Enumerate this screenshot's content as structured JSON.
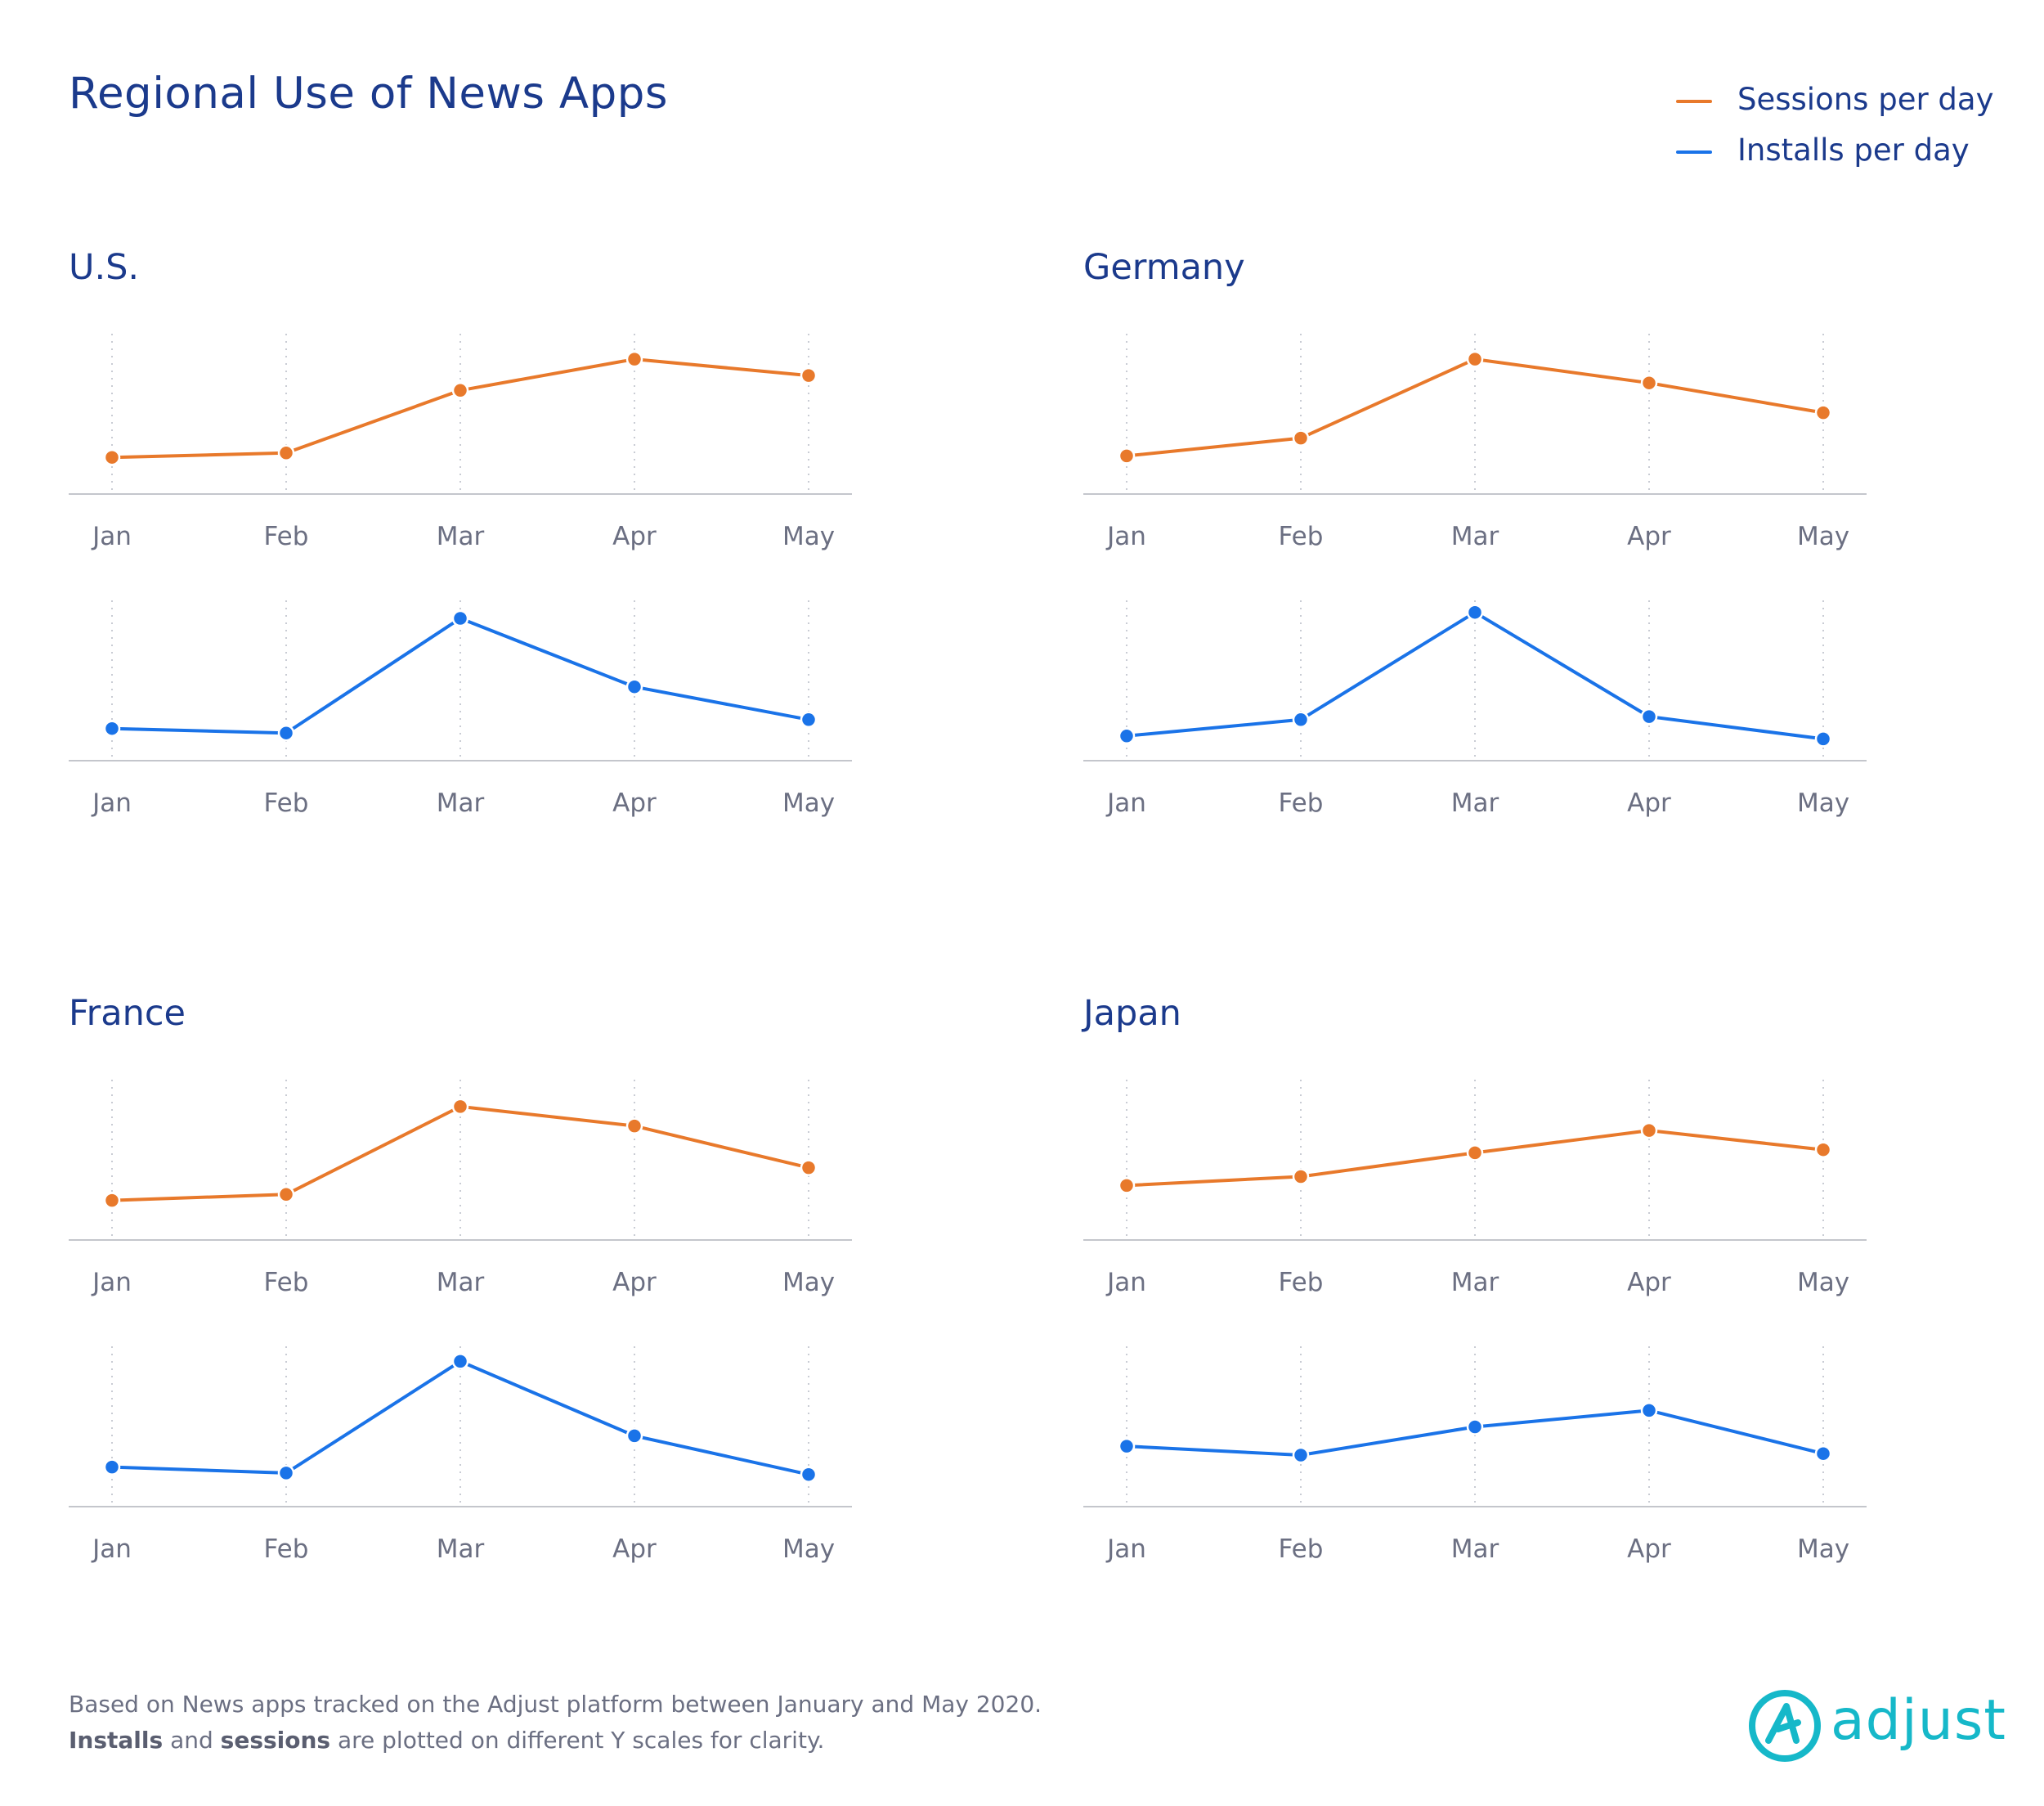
{
  "title": "Regional Use of News Apps",
  "legend": [
    {
      "label": "Sessions per day",
      "color": "#e8792b"
    },
    {
      "label": "Installs per day",
      "color": "#1a73e8"
    }
  ],
  "footnote": {
    "line1": "Based on News apps tracked on the Adjust platform between January and May 2020.",
    "installs_word": "Installs",
    "and_word": " and ",
    "sessions_word": "sessions",
    "line2_rest": " are plotted on different Y scales for clarity."
  },
  "brand": {
    "name": "adjust",
    "color": "#16b8c9"
  },
  "chart_data": [
    {
      "type": "line",
      "title": "U.S.",
      "categories": [
        "Jan",
        "Feb",
        "Mar",
        "Apr",
        "May"
      ],
      "series": [
        {
          "name": "Sessions per day",
          "values": [
            0.18,
            0.21,
            0.63,
            0.84,
            0.73
          ]
        },
        {
          "name": "Installs per day",
          "values": [
            0.15,
            0.12,
            0.89,
            0.43,
            0.21
          ]
        }
      ],
      "ylim": [
        0,
        1
      ],
      "grid": "vertical-dotted",
      "legend": "top-right"
    },
    {
      "type": "line",
      "title": "Germany",
      "categories": [
        "Jan",
        "Feb",
        "Mar",
        "Apr",
        "May"
      ],
      "series": [
        {
          "name": "Sessions per day",
          "values": [
            0.19,
            0.31,
            0.84,
            0.68,
            0.48
          ]
        },
        {
          "name": "Installs per day",
          "values": [
            0.1,
            0.21,
            0.93,
            0.23,
            0.08
          ]
        }
      ],
      "ylim": [
        0,
        1
      ],
      "grid": "vertical-dotted",
      "legend": "top-right"
    },
    {
      "type": "line",
      "title": "France",
      "categories": [
        "Jan",
        "Feb",
        "Mar",
        "Apr",
        "May"
      ],
      "series": [
        {
          "name": "Sessions per day",
          "values": [
            0.2,
            0.24,
            0.83,
            0.7,
            0.42
          ]
        },
        {
          "name": "Installs per day",
          "values": [
            0.2,
            0.16,
            0.91,
            0.41,
            0.15
          ]
        }
      ],
      "ylim": [
        0,
        1
      ],
      "grid": "vertical-dotted",
      "legend": "top-right"
    },
    {
      "type": "line",
      "title": "Japan",
      "categories": [
        "Jan",
        "Feb",
        "Mar",
        "Apr",
        "May"
      ],
      "series": [
        {
          "name": "Sessions per day",
          "values": [
            0.3,
            0.36,
            0.52,
            0.67,
            0.54
          ]
        },
        {
          "name": "Installs per day",
          "values": [
            0.34,
            0.28,
            0.47,
            0.58,
            0.29
          ]
        }
      ],
      "ylim": [
        0,
        1
      ],
      "grid": "vertical-dotted",
      "legend": "top-right"
    }
  ]
}
